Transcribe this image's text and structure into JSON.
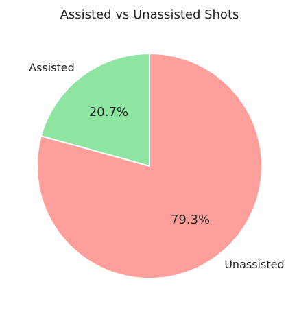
{
  "chart_data": {
    "type": "pie",
    "title": "Assisted vs Unassisted Shots",
    "slices": [
      {
        "label": "Assisted",
        "value": 20.7,
        "pct_label": "20.7%",
        "color": "#8de5a1"
      },
      {
        "label": "Unassisted",
        "value": 79.3,
        "pct_label": "79.3%",
        "color": "#ff9f9b"
      }
    ],
    "start_angle_deg": 90,
    "direction": "counterclockwise"
  }
}
